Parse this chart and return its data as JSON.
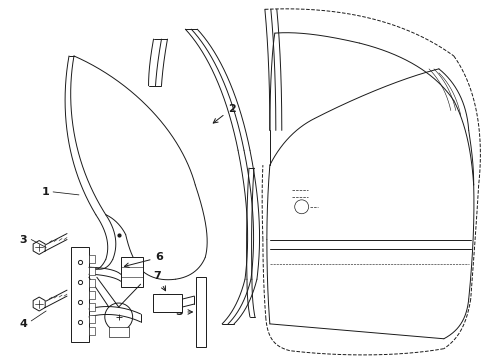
{
  "bg_color": "#ffffff",
  "line_color": "#1a1a1a",
  "font_size": 8,
  "lw": 0.7
}
